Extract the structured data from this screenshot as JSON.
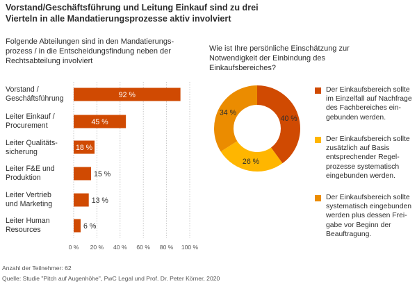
{
  "title_line1": "Vorstand/Geschäftsführung und Leitung Einkauf sind zu drei",
  "title_line2": "Vierteln in alle Mandatierungsprozesse aktiv involviert",
  "bar_subtitle_lines": [
    "Folgende Abteilungen sind in den Mandatierungs-",
    "prozess / in die Entscheidungsfindung neben der",
    "Rechtsabteilung involviert"
  ],
  "pie_subtitle_lines": [
    "Wie ist Ihre persönliche Einschätzung zur",
    "Notwendigkeit der Einbindung des",
    "Einkaufsbereiches?"
  ],
  "footer": {
    "participants": "Anzahl der Teilnehmer: 62",
    "source": "Quelle: Studie \"Pitch auf Augenhöhe\", PwC Legal und Prof. Dr. Peter Körner, 2020"
  },
  "colors": {
    "bar": "#d04a02",
    "pie_dark": "#d04a02",
    "pie_yellow": "#ffb600",
    "pie_orange": "#eb8c00",
    "grid": "#bbbbbb",
    "text": "#2d2d2d"
  },
  "chart_data": [
    {
      "type": "bar",
      "orientation": "horizontal",
      "categories": [
        [
          "Vorstand /",
          "Geschäftsführung"
        ],
        [
          "Leiter Einkauf /",
          "Procurement"
        ],
        [
          "Leiter Qualitäts-",
          "sicherung"
        ],
        [
          "Leiter F&E und",
          "Produktion"
        ],
        [
          "Leiter Vertrieb",
          "und Marketing"
        ],
        [
          "Leiter Human",
          "Resources"
        ]
      ],
      "values": [
        92,
        45,
        18,
        15,
        13,
        6
      ],
      "value_labels": [
        "92 %",
        "45 %",
        "18 %",
        "15 %",
        "13 %",
        "6 %"
      ],
      "xlim": [
        0,
        100
      ],
      "ticks": [
        0,
        20,
        40,
        60,
        80,
        100
      ],
      "tick_labels": [
        "0 %",
        "20 %",
        "40 %",
        "60 %",
        "80 %",
        "100 %"
      ],
      "grid": true
    },
    {
      "type": "pie",
      "donut": true,
      "slices": [
        {
          "value": 40,
          "label": "40 %",
          "color": "#d04a02",
          "legend_lines": [
            "Der Einkaufsbereich sollte",
            "im Einzelfall auf Nachfrage",
            "des Fachbereiches ein-",
            "gebunden werden."
          ]
        },
        {
          "value": 26,
          "label": "26 %",
          "color": "#ffb600",
          "legend_lines": [
            "Der Einkaufsbereich sollte",
            "zusätzlich auf Basis",
            "entsprechender Regel-",
            "prozesse systematisch",
            "eingebunden werden."
          ]
        },
        {
          "value": 34,
          "label": "34 %",
          "color": "#eb8c00",
          "legend_lines": [
            "Der Einkaufsbereich sollte",
            "systematisch eingebunden",
            "werden plus dessen Frei-",
            "gabe vor Beginn der",
            "Beauftragung."
          ]
        }
      ],
      "legend_placement": "right"
    }
  ]
}
